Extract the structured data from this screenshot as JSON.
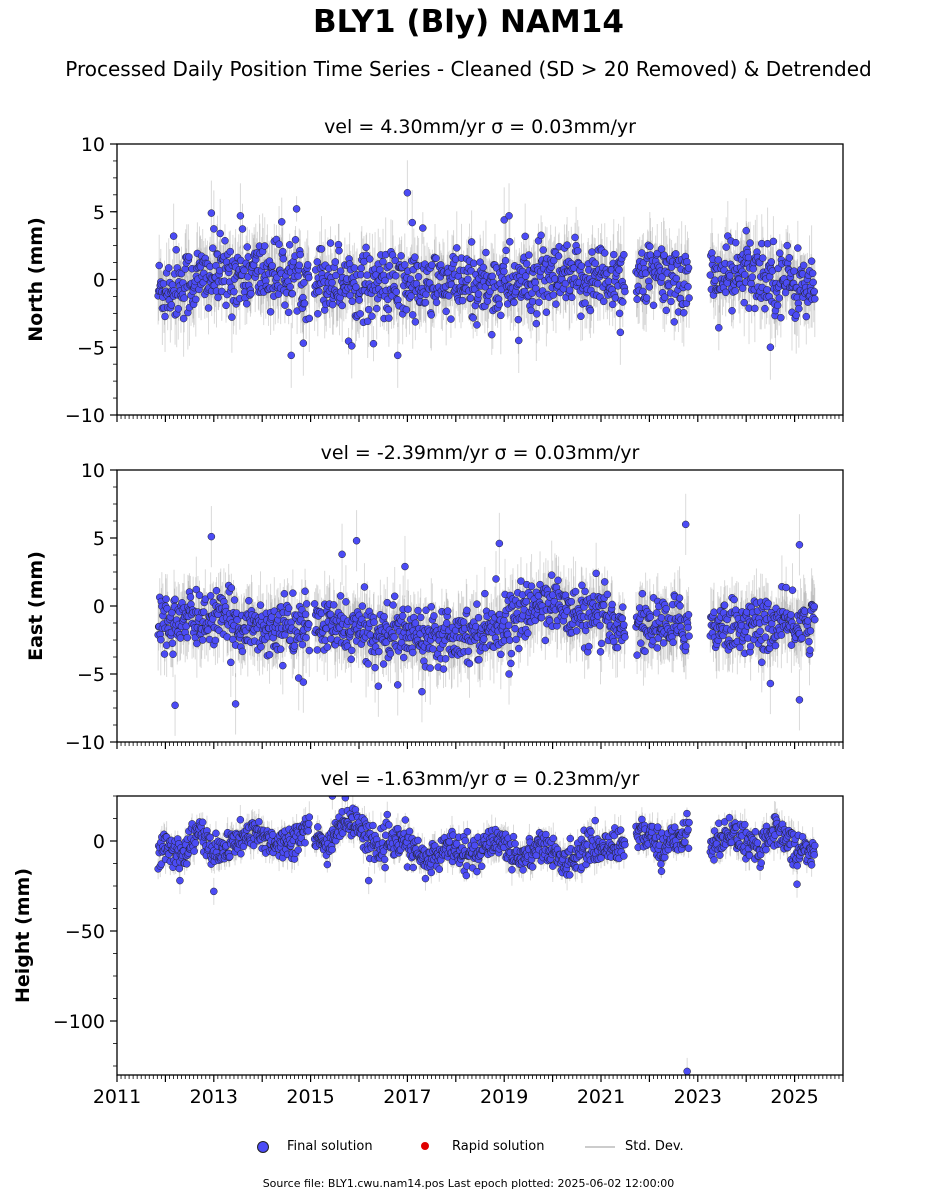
{
  "title": "BLY1 (Bly) NAM14",
  "subtitle": "Processed Daily Position Time Series - Cleaned (SD > 20 Removed) & Detrended",
  "footer": "Source file: BLY1.cwu.nam14.pos  Last epoch plotted: 2025-06-02 12:00:00",
  "legend": {
    "final": "Final solution",
    "rapid": "Rapid solution",
    "std": "Std. Dev.",
    "final_color": "#4b4bf5",
    "rapid_color": "#e00000",
    "std_color": "#cccccc"
  },
  "chart_data": [
    {
      "type": "scatter",
      "panel": "north",
      "title": "vel = 4.30mm/yr   σ = 0.03mm/yr",
      "xlabel": "",
      "ylabel": "North (mm)",
      "xlim": [
        2011.0,
        2026.0
      ],
      "ylim": [
        -10,
        10
      ],
      "yticks": [
        -10,
        -5,
        0,
        5,
        10
      ],
      "ytick_labels": [
        "−10",
        "−5",
        "0",
        "5",
        "10"
      ],
      "xticks": [
        2011,
        2013,
        2015,
        2017,
        2019,
        2021,
        2023,
        2025
      ],
      "data_span": [
        2011.85,
        2025.42
      ],
      "gaps": [
        [
          2014.98,
          2015.08
        ],
        [
          2021.5,
          2021.72
        ],
        [
          2022.82,
          2023.25
        ]
      ],
      "series": [
        {
          "name": "Final solution",
          "color": "#4b4bf5",
          "trend": [
            [
              2011.85,
              -0.8
            ],
            [
              2013.0,
              0.3
            ],
            [
              2014.0,
              0.5
            ],
            [
              2015.5,
              0.0
            ],
            [
              2016.5,
              -0.5
            ],
            [
              2018.5,
              -0.4
            ],
            [
              2020.0,
              -0.2
            ],
            [
              2021.5,
              0.3
            ],
            [
              2023.0,
              0.0
            ],
            [
              2024.5,
              0.4
            ],
            [
              2025.42,
              -1.0
            ]
          ],
          "scatter": 1.3,
          "sd": 1.6,
          "outliers": [
            [
              2012.17,
              3.2
            ],
            [
              2012.95,
              4.9
            ],
            [
              2013.55,
              4.7
            ],
            [
              2014.6,
              -5.6
            ],
            [
              2014.85,
              -4.7
            ],
            [
              2015.85,
              -4.9
            ],
            [
              2016.8,
              -5.6
            ],
            [
              2017.0,
              6.4
            ],
            [
              2017.1,
              4.2
            ],
            [
              2019.0,
              4.4
            ],
            [
              2019.1,
              4.7
            ],
            [
              2019.3,
              -4.5
            ],
            [
              2021.4,
              -3.9
            ],
            [
              2024.5,
              -5.0
            ],
            [
              2024.0,
              3.6
            ]
          ]
        }
      ]
    },
    {
      "type": "scatter",
      "panel": "east",
      "title": "vel = -2.39mm/yr   σ = 0.03mm/yr",
      "xlabel": "",
      "ylabel": "East (mm)",
      "xlim": [
        2011.0,
        2026.0
      ],
      "ylim": [
        -10,
        10
      ],
      "yticks": [
        -10,
        -5,
        0,
        5,
        10
      ],
      "ytick_labels": [
        "−10",
        "−5",
        "0",
        "5",
        "10"
      ],
      "xticks": [
        2011,
        2013,
        2015,
        2017,
        2019,
        2021,
        2023,
        2025
      ],
      "data_span": [
        2011.85,
        2025.42
      ],
      "gaps": [
        [
          2014.98,
          2015.08
        ],
        [
          2021.5,
          2021.72
        ],
        [
          2022.82,
          2023.25
        ]
      ],
      "series": [
        {
          "name": "Final solution",
          "color": "#4b4bf5",
          "trend": [
            [
              2011.85,
              -1.2
            ],
            [
              2013.0,
              -0.9
            ],
            [
              2014.0,
              -1.6
            ],
            [
              2015.2,
              -1.5
            ],
            [
              2016.5,
              -2.0
            ],
            [
              2018.3,
              -2.0
            ],
            [
              2019.3,
              -0.9
            ],
            [
              2019.9,
              0.6
            ],
            [
              2020.3,
              -0.5
            ],
            [
              2021.5,
              -1.4
            ],
            [
              2023.0,
              -1.4
            ],
            [
              2024.5,
              -1.5
            ],
            [
              2025.42,
              -1.2
            ]
          ],
          "scatter": 1.0,
          "sd": 1.5,
          "outliers": [
            [
              2012.2,
              -7.3
            ],
            [
              2012.95,
              5.1
            ],
            [
              2013.45,
              -7.2
            ],
            [
              2014.85,
              -5.6
            ],
            [
              2015.65,
              3.8
            ],
            [
              2015.95,
              4.8
            ],
            [
              2016.4,
              -5.9
            ],
            [
              2016.8,
              -5.8
            ],
            [
              2016.95,
              2.9
            ],
            [
              2017.3,
              -6.3
            ],
            [
              2018.9,
              4.6
            ],
            [
              2019.1,
              -5.0
            ],
            [
              2020.9,
              2.4
            ],
            [
              2022.75,
              6.0
            ],
            [
              2024.5,
              -5.7
            ],
            [
              2025.1,
              4.5
            ],
            [
              2025.1,
              -6.9
            ]
          ]
        }
      ]
    },
    {
      "type": "scatter",
      "panel": "height",
      "title": "vel = -1.63mm/yr   σ = 0.23mm/yr",
      "xlabel": "",
      "ylabel": "Height (mm)",
      "xlim": [
        2011.0,
        2026.0
      ],
      "ylim": [
        -130,
        25
      ],
      "yticks": [
        -100,
        -50,
        0
      ],
      "ytick_labels": [
        "−100",
        "−50",
        "0"
      ],
      "xticks": [
        2011,
        2013,
        2015,
        2017,
        2019,
        2021,
        2023,
        2025
      ],
      "xtick_labels": [
        "2011",
        "2013",
        "2015",
        "2017",
        "2019",
        "2021",
        "2023",
        "2025"
      ],
      "data_span": [
        2011.85,
        2025.42
      ],
      "gaps": [
        [
          2014.98,
          2015.08
        ],
        [
          2021.5,
          2021.72
        ],
        [
          2022.82,
          2023.25
        ]
      ],
      "series": [
        {
          "name": "Final solution",
          "color": "#4b4bf5",
          "trend": [
            [
              2011.85,
              -4
            ],
            [
              2012.4,
              -6
            ],
            [
              2012.7,
              6
            ],
            [
              2013.0,
              -8
            ],
            [
              2013.5,
              0
            ],
            [
              2013.9,
              4
            ],
            [
              2014.4,
              -2
            ],
            [
              2014.95,
              6
            ],
            [
              2015.3,
              -4
            ],
            [
              2015.7,
              12
            ],
            [
              2016.0,
              8
            ],
            [
              2016.4,
              -4
            ],
            [
              2016.9,
              0
            ],
            [
              2017.4,
              -12
            ],
            [
              2017.9,
              -2
            ],
            [
              2018.4,
              -8
            ],
            [
              2018.9,
              2
            ],
            [
              2019.3,
              -10
            ],
            [
              2019.8,
              -2
            ],
            [
              2020.2,
              -12
            ],
            [
              2020.7,
              -4
            ],
            [
              2021.5,
              -2
            ],
            [
              2021.8,
              6
            ],
            [
              2022.3,
              -4
            ],
            [
              2022.75,
              6
            ],
            [
              2023.3,
              -4
            ],
            [
              2023.7,
              6
            ],
            [
              2024.2,
              -6
            ],
            [
              2024.6,
              8
            ],
            [
              2025.0,
              -4
            ],
            [
              2025.42,
              -8
            ]
          ],
          "scatter": 4.5,
          "sd": 5.0,
          "outliers": [
            [
              2022.78,
              -128
            ],
            [
              2015.45,
              25
            ],
            [
              2016.2,
              -22
            ],
            [
              2025.05,
              -24
            ],
            [
              2013.0,
              -28
            ],
            [
              2012.3,
              -22
            ]
          ]
        }
      ]
    }
  ]
}
